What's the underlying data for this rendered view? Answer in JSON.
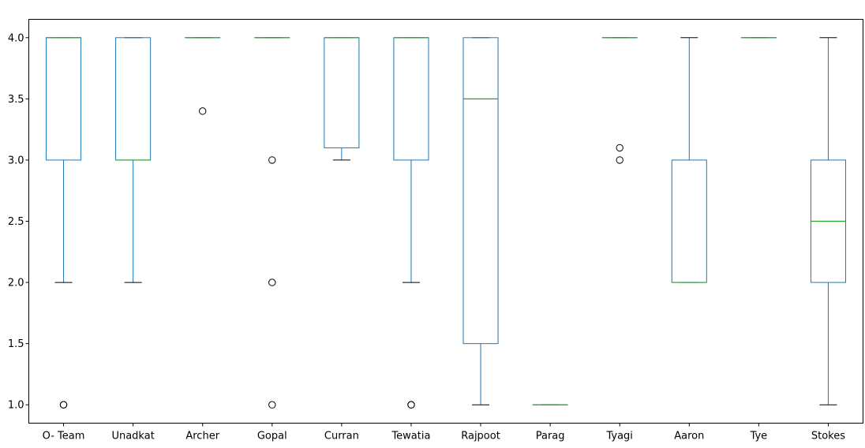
{
  "chart_data": {
    "type": "box",
    "title": "",
    "xlabel": "",
    "ylabel": "",
    "ylim": [
      0.85,
      4.15
    ],
    "yticks": [
      "1.0",
      "1.5",
      "2.0",
      "2.5",
      "3.0",
      "3.5",
      "4.0"
    ],
    "grid": false,
    "colors": {
      "box": "#1f77b4",
      "median": "#2ca02c",
      "whisker": "#1f77b4",
      "cap": "#000000",
      "flier": "#000000"
    },
    "series": [
      {
        "category": "O- Team",
        "whislo": 2.0,
        "q1": 3.0,
        "med": 4.0,
        "q3": 4.0,
        "whishi": 4.0,
        "fliers": [
          1.0,
          1.0
        ]
      },
      {
        "category": "Unadkat",
        "whislo": 2.0,
        "q1": 3.0,
        "med": 3.0,
        "q3": 4.0,
        "whishi": 4.0,
        "fliers": []
      },
      {
        "category": "Archer",
        "whislo": 4.0,
        "q1": 4.0,
        "med": 4.0,
        "q3": 4.0,
        "whishi": 4.0,
        "fliers": [
          3.4
        ]
      },
      {
        "category": "Gopal",
        "whislo": 4.0,
        "q1": 4.0,
        "med": 4.0,
        "q3": 4.0,
        "whishi": 4.0,
        "fliers": [
          3.0,
          2.0,
          1.0
        ]
      },
      {
        "category": "Curran",
        "whislo": 3.0,
        "q1": 3.1,
        "med": 4.0,
        "q3": 4.0,
        "whishi": 4.0,
        "fliers": []
      },
      {
        "category": "Tewatia",
        "whislo": 2.0,
        "q1": 3.0,
        "med": 4.0,
        "q3": 4.0,
        "whishi": 4.0,
        "fliers": [
          1.0,
          1.0
        ]
      },
      {
        "category": "Rajpoot",
        "whislo": 1.0,
        "q1": 1.5,
        "med": 3.5,
        "q3": 4.0,
        "whishi": 4.0,
        "fliers": []
      },
      {
        "category": "Parag",
        "whislo": 1.0,
        "q1": 1.0,
        "med": 1.0,
        "q3": 1.0,
        "whishi": 1.0,
        "fliers": []
      },
      {
        "category": "Tyagi",
        "whislo": 4.0,
        "q1": 4.0,
        "med": 4.0,
        "q3": 4.0,
        "whishi": 4.0,
        "fliers": [
          3.1,
          3.0
        ]
      },
      {
        "category": "Aaron",
        "whislo": 2.0,
        "q1": 2.0,
        "med": 2.0,
        "q3": 3.0,
        "whishi": 4.0,
        "fliers": []
      },
      {
        "category": "Tye",
        "whislo": 4.0,
        "q1": 4.0,
        "med": 4.0,
        "q3": 4.0,
        "whishi": 4.0,
        "fliers": []
      },
      {
        "category": "Stokes",
        "whislo": 1.0,
        "q1": 2.0,
        "med": 2.5,
        "q3": 3.0,
        "whishi": 4.0,
        "fliers": []
      }
    ]
  }
}
